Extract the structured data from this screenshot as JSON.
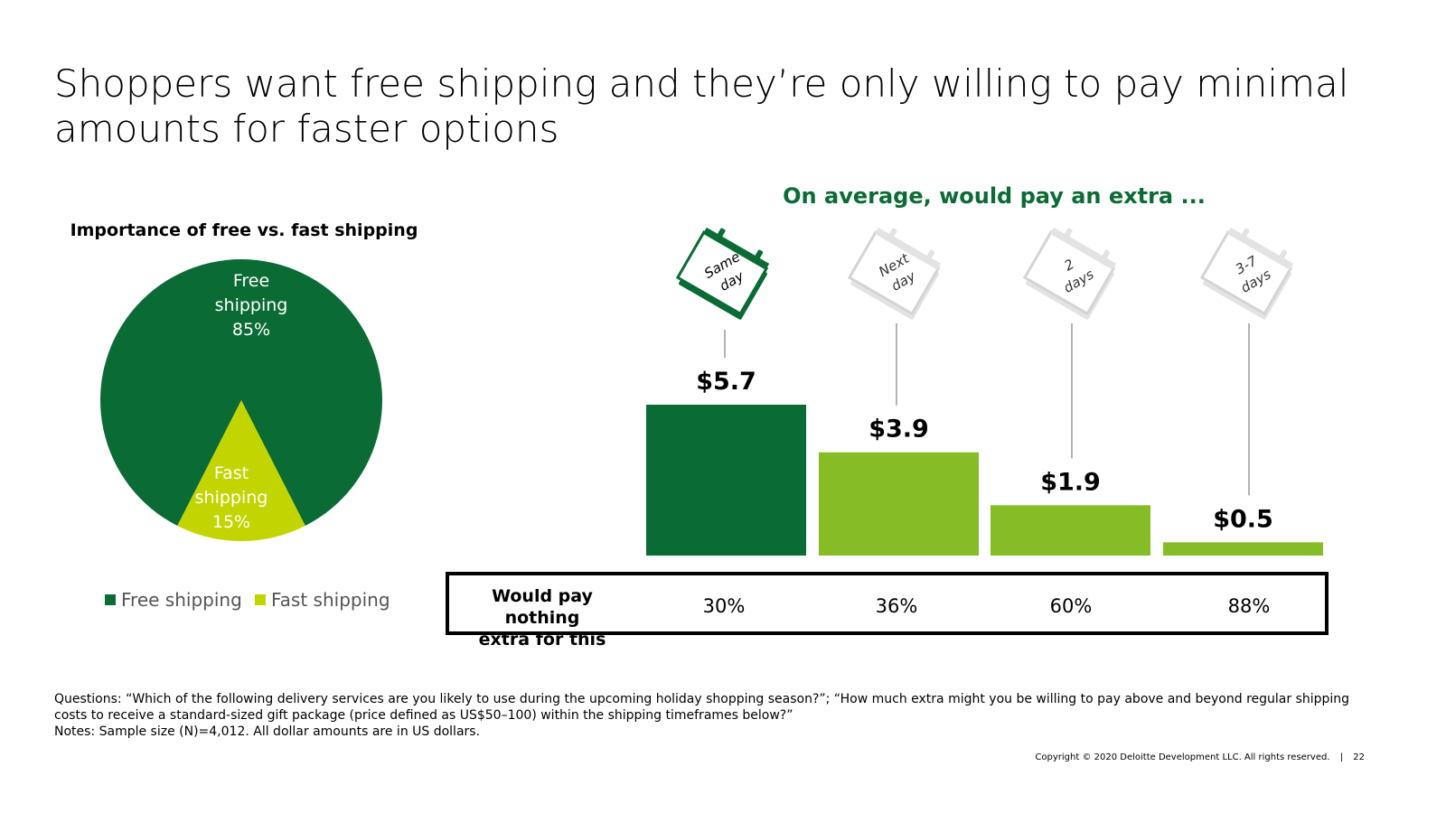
{
  "title": "Shoppers want free shipping and they’re only willing to pay minimal amounts for faster options",
  "colors": {
    "dark_green": "#0b6b35",
    "lime": "#c3d500",
    "bar_green": "#86bc25",
    "grey_icon": "#d9d9d9"
  },
  "chart_data": [
    {
      "type": "pie",
      "title": "Importance of free vs. fast shipping",
      "slices": [
        {
          "name": "Free shipping",
          "label_line1": "Free",
          "label_line2": "shipping",
          "value": 85,
          "label": "85%",
          "color": "#0b6b35"
        },
        {
          "name": "Fast shipping",
          "label_line1": "Fast",
          "label_line2": "shipping",
          "value": 15,
          "label": "15%",
          "color": "#c3d500"
        }
      ],
      "legend": [
        "Free shipping",
        "Fast shipping"
      ],
      "legend_position": "bottom"
    },
    {
      "type": "bar",
      "title": "On average, would pay an extra ...",
      "categories": [
        "Same day",
        "Next day",
        "2 days",
        "3-7 days"
      ],
      "icon_labels": [
        {
          "line1": "Same",
          "line2": "day",
          "icon": "calendar-icon",
          "active": true
        },
        {
          "line1": "Next",
          "line2": "day",
          "icon": "calendar-icon",
          "active": false
        },
        {
          "line1": "2",
          "line2": "days",
          "icon": "calendar-icon",
          "active": false
        },
        {
          "line1": "3-7",
          "line2": "days",
          "icon": "calendar-icon",
          "active": false
        }
      ],
      "values": [
        5.7,
        3.9,
        1.9,
        0.5
      ],
      "value_labels": [
        "$5.7",
        "$3.9",
        "$1.9",
        "$0.5"
      ],
      "bar_colors": [
        "#0b6b35",
        "#86bc25",
        "#86bc25",
        "#86bc25"
      ],
      "ylim": [
        0,
        5.7
      ],
      "row": {
        "label_line1": "Would pay nothing",
        "label_line2": "extra for this",
        "values": [
          "30%",
          "36%",
          "60%",
          "88%"
        ]
      }
    }
  ],
  "notes": {
    "questions": "Questions: “Which of the following delivery services are you likely to use during the upcoming holiday shopping season?”; “How much extra might you be willing to pay above and beyond regular shipping costs to receive a standard-sized gift package (price defined as US$50–100) within the shipping timeframes below?”",
    "sample": "Notes: Sample size (N)=4,012. All dollar amounts are in US dollars."
  },
  "footer": {
    "copyright": "Copyright © 2020 Deloitte Development LLC. All rights reserved.",
    "separator": "|",
    "page": "22"
  }
}
